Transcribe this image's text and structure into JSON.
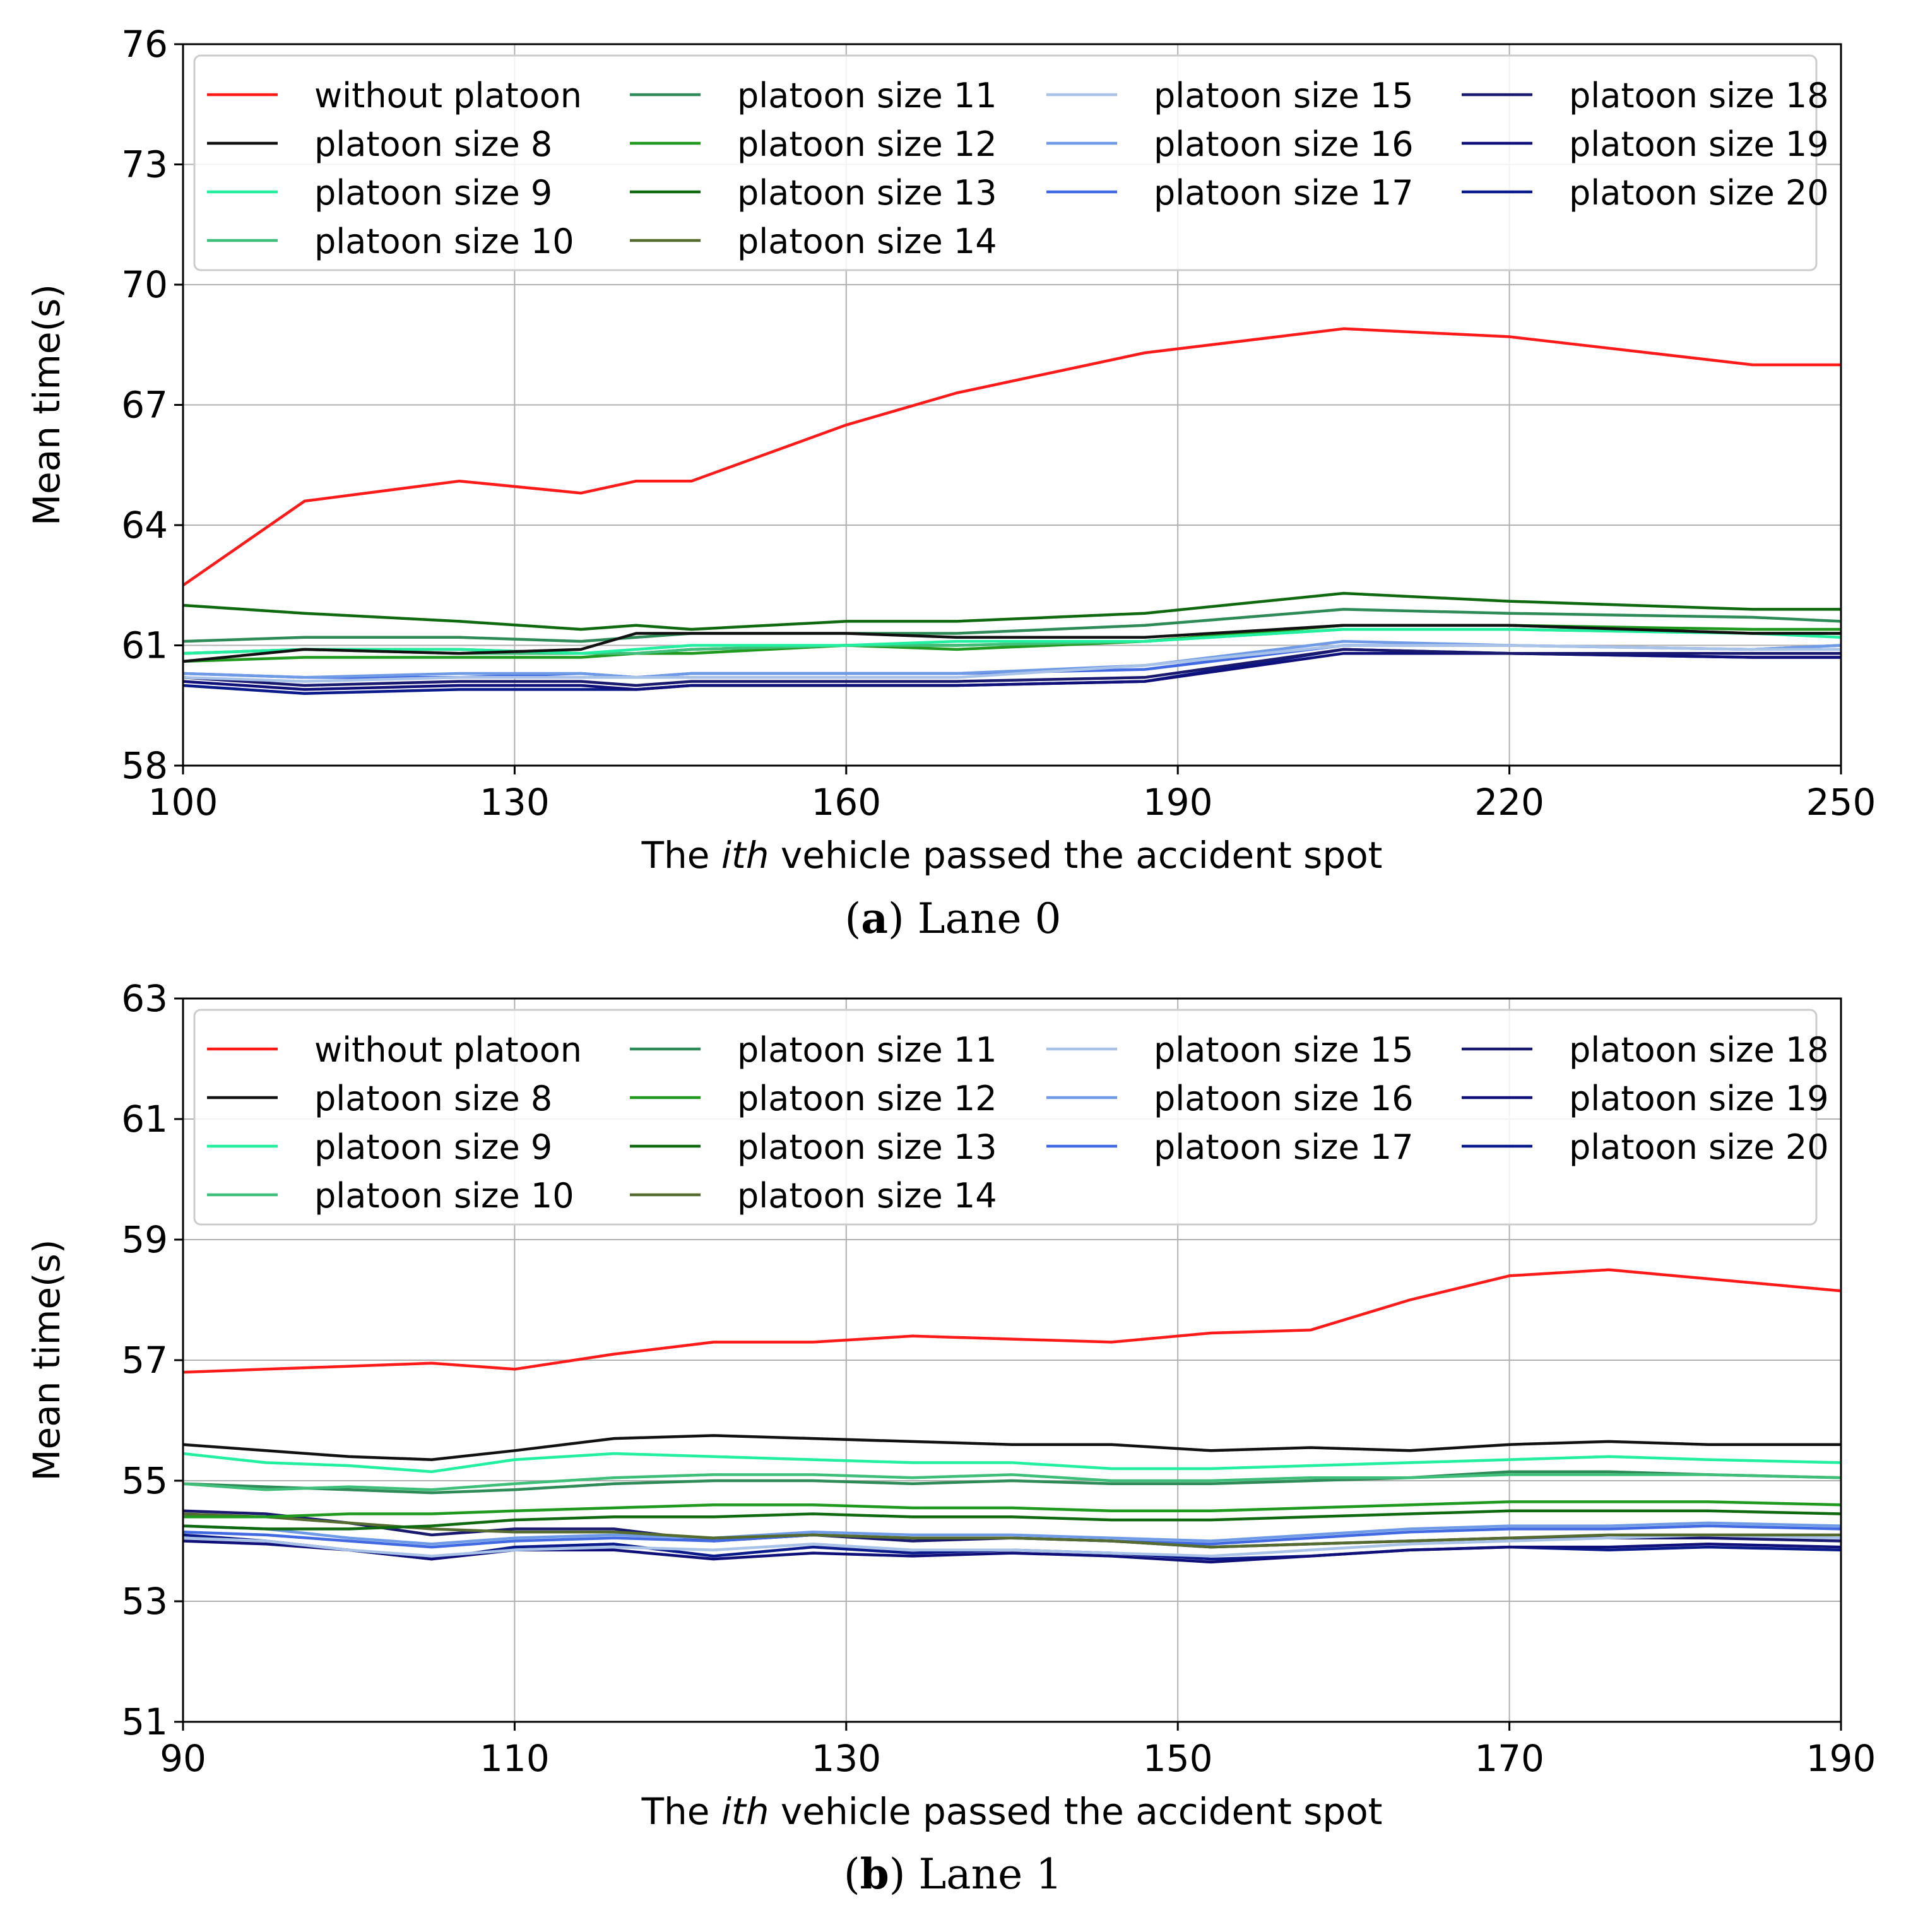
{
  "series_styles": [
    {
      "name": "without platoon",
      "color": "#ff1a1a"
    },
    {
      "name": "platoon size 8",
      "color": "#111111"
    },
    {
      "name": "platoon size 9",
      "color": "#22f0a0"
    },
    {
      "name": "platoon size 10",
      "color": "#3fbf7a"
    },
    {
      "name": "platoon size 11",
      "color": "#2e8b57"
    },
    {
      "name": "platoon size 12",
      "color": "#1f9a1f"
    },
    {
      "name": "platoon size 13",
      "color": "#0f6a0f"
    },
    {
      "name": "platoon size 14",
      "color": "#556b2f"
    },
    {
      "name": "platoon size 15",
      "color": "#a9c2e8"
    },
    {
      "name": "platoon size 16",
      "color": "#6f9be6"
    },
    {
      "name": "platoon size 17",
      "color": "#4169e1"
    },
    {
      "name": "platoon size 18",
      "color": "#191970"
    },
    {
      "name": "platoon size 19",
      "color": "#10107a"
    },
    {
      "name": "platoon size 20",
      "color": "#0a1a8a"
    }
  ],
  "chart_data": [
    {
      "type": "line",
      "panel_label": "a",
      "caption": "Lane 0",
      "title": "",
      "xlabel_before": "The ",
      "xlabel_italic": "ith",
      "xlabel_after": " vehicle passed the accident spot",
      "ylabel": "Mean time(s)",
      "xlim": [
        100,
        250
      ],
      "ylim": [
        58,
        76
      ],
      "xticks": [
        100,
        130,
        160,
        190,
        220,
        250
      ],
      "yticks": [
        58,
        61,
        64,
        67,
        70,
        73,
        76
      ],
      "grid": true,
      "legend": "top, 4 columns",
      "x": [
        100,
        111,
        125,
        136,
        141,
        146,
        160,
        170,
        187,
        205,
        220,
        242,
        250
      ],
      "series": [
        {
          "name": "without platoon",
          "values": [
            62.5,
            64.6,
            65.1,
            64.8,
            65.1,
            65.1,
            66.5,
            67.3,
            68.3,
            68.9,
            68.7,
            68.0,
            68.0
          ]
        },
        {
          "name": "platoon size 8",
          "values": [
            60.6,
            60.9,
            60.8,
            60.9,
            61.3,
            61.3,
            61.3,
            61.2,
            61.2,
            61.5,
            61.5,
            61.3,
            61.3
          ]
        },
        {
          "name": "platoon size 9",
          "values": [
            60.8,
            60.9,
            60.9,
            60.8,
            60.9,
            61.0,
            61.0,
            61.1,
            61.1,
            61.4,
            61.4,
            61.3,
            61.2
          ]
        },
        {
          "name": "platoon size 10",
          "values": [
            60.8,
            60.9,
            60.8,
            60.8,
            60.8,
            60.9,
            61.0,
            61.0,
            61.1,
            61.4,
            61.4,
            61.3,
            61.3
          ]
        },
        {
          "name": "platoon size 11",
          "values": [
            61.1,
            61.2,
            61.2,
            61.1,
            61.2,
            61.3,
            61.3,
            61.3,
            61.5,
            61.9,
            61.8,
            61.7,
            61.6
          ]
        },
        {
          "name": "platoon size 12",
          "values": [
            60.6,
            60.7,
            60.7,
            60.7,
            60.8,
            60.8,
            61.0,
            60.9,
            61.1,
            61.5,
            61.5,
            61.4,
            61.4
          ]
        },
        {
          "name": "platoon size 13",
          "values": [
            62.0,
            61.8,
            61.6,
            61.4,
            61.5,
            61.4,
            61.6,
            61.6,
            61.8,
            62.3,
            62.1,
            61.9,
            61.9
          ]
        },
        {
          "name": "platoon size 14",
          "values": [
            60.8,
            60.9,
            60.9,
            60.8,
            60.8,
            60.9,
            61.0,
            61.0,
            61.1,
            61.5,
            61.5,
            61.3,
            61.3
          ]
        },
        {
          "name": "platoon size 15",
          "values": [
            60.2,
            60.1,
            60.2,
            60.2,
            60.2,
            60.2,
            60.2,
            60.2,
            60.5,
            61.0,
            61.0,
            60.9,
            60.9
          ]
        },
        {
          "name": "platoon size 16",
          "values": [
            60.3,
            60.2,
            60.3,
            60.3,
            60.2,
            60.3,
            60.3,
            60.3,
            60.5,
            61.1,
            61.0,
            60.9,
            61.0
          ]
        },
        {
          "name": "platoon size 17",
          "values": [
            60.3,
            60.2,
            60.2,
            60.3,
            60.2,
            60.3,
            60.3,
            60.3,
            60.4,
            61.0,
            61.0,
            60.9,
            61.0
          ]
        },
        {
          "name": "platoon size 18",
          "values": [
            60.2,
            60.0,
            60.1,
            60.1,
            60.0,
            60.1,
            60.1,
            60.1,
            60.2,
            60.9,
            60.8,
            60.8,
            60.8
          ]
        },
        {
          "name": "platoon size 19",
          "values": [
            60.1,
            59.9,
            60.0,
            60.0,
            59.9,
            60.0,
            60.0,
            60.0,
            60.1,
            60.8,
            60.8,
            60.7,
            60.7
          ]
        },
        {
          "name": "platoon size 20",
          "values": [
            60.0,
            59.8,
            59.9,
            59.9,
            59.9,
            60.0,
            60.0,
            60.0,
            60.1,
            60.9,
            60.8,
            60.7,
            60.7
          ]
        }
      ]
    },
    {
      "type": "line",
      "panel_label": "b",
      "caption": "Lane 1",
      "title": "",
      "xlabel_before": "The ",
      "xlabel_italic": "ith",
      "xlabel_after": " vehicle passed the accident spot",
      "ylabel": "Mean time(s)",
      "xlim": [
        90,
        190
      ],
      "ylim": [
        51,
        63
      ],
      "xticks": [
        90,
        110,
        130,
        150,
        170,
        190
      ],
      "yticks": [
        51,
        53,
        55,
        57,
        59,
        61,
        63
      ],
      "grid": true,
      "legend": "top, 4 columns",
      "x": [
        90,
        95,
        100,
        105,
        110,
        116,
        122,
        128,
        134,
        140,
        146,
        152,
        158,
        164,
        170,
        176,
        182,
        190
      ],
      "series": [
        {
          "name": "without platoon",
          "values": [
            56.8,
            56.85,
            56.9,
            56.95,
            56.85,
            57.1,
            57.3,
            57.3,
            57.4,
            57.35,
            57.3,
            57.45,
            57.5,
            58.0,
            58.4,
            58.5,
            58.35,
            58.15
          ]
        },
        {
          "name": "platoon size 8",
          "values": [
            55.6,
            55.5,
            55.4,
            55.35,
            55.5,
            55.7,
            55.75,
            55.7,
            55.65,
            55.6,
            55.6,
            55.5,
            55.55,
            55.5,
            55.6,
            55.65,
            55.6,
            55.6
          ]
        },
        {
          "name": "platoon size 9",
          "values": [
            55.45,
            55.3,
            55.25,
            55.15,
            55.35,
            55.45,
            55.4,
            55.35,
            55.3,
            55.3,
            55.2,
            55.2,
            55.25,
            55.3,
            55.35,
            55.4,
            55.35,
            55.3
          ]
        },
        {
          "name": "platoon size 10",
          "values": [
            54.95,
            54.85,
            54.9,
            54.85,
            54.95,
            55.05,
            55.1,
            55.1,
            55.05,
            55.1,
            55.0,
            55.0,
            55.05,
            55.05,
            55.1,
            55.1,
            55.1,
            55.05
          ]
        },
        {
          "name": "platoon size 11",
          "values": [
            54.95,
            54.9,
            54.85,
            54.8,
            54.85,
            54.95,
            55.0,
            55.0,
            54.95,
            55.0,
            54.95,
            54.95,
            55.0,
            55.05,
            55.15,
            55.15,
            55.1,
            55.05
          ]
        },
        {
          "name": "platoon size 12",
          "values": [
            54.4,
            54.4,
            54.45,
            54.45,
            54.5,
            54.55,
            54.6,
            54.6,
            54.55,
            54.55,
            54.5,
            54.5,
            54.55,
            54.6,
            54.65,
            54.65,
            54.65,
            54.6
          ]
        },
        {
          "name": "platoon size 13",
          "values": [
            54.25,
            54.2,
            54.2,
            54.25,
            54.35,
            54.4,
            54.4,
            54.45,
            54.4,
            54.4,
            54.35,
            54.35,
            54.4,
            54.45,
            54.5,
            54.5,
            54.5,
            54.45
          ]
        },
        {
          "name": "platoon size 14",
          "values": [
            54.45,
            54.4,
            54.3,
            54.2,
            54.15,
            54.15,
            54.05,
            54.1,
            54.05,
            54.05,
            54.0,
            53.9,
            53.95,
            54.0,
            54.05,
            54.1,
            54.1,
            54.1
          ]
        },
        {
          "name": "platoon size 15",
          "values": [
            54.05,
            54.0,
            53.85,
            53.75,
            53.85,
            53.9,
            53.85,
            53.95,
            53.85,
            53.85,
            53.8,
            53.75,
            53.85,
            53.95,
            54.0,
            54.05,
            54.1,
            54.05
          ]
        },
        {
          "name": "platoon size 16",
          "values": [
            54.25,
            54.2,
            54.05,
            53.95,
            54.05,
            54.1,
            54.05,
            54.15,
            54.1,
            54.1,
            54.05,
            54.0,
            54.1,
            54.2,
            54.25,
            54.25,
            54.3,
            54.25
          ]
        },
        {
          "name": "platoon size 17",
          "values": [
            54.15,
            54.1,
            54.0,
            53.9,
            54.0,
            54.05,
            54.0,
            54.1,
            54.05,
            54.05,
            54.0,
            53.95,
            54.05,
            54.15,
            54.2,
            54.2,
            54.25,
            54.2
          ]
        },
        {
          "name": "platoon size 18",
          "values": [
            54.5,
            54.45,
            54.3,
            54.1,
            54.2,
            54.2,
            54.0,
            54.1,
            54.0,
            54.05,
            54.0,
            53.9,
            53.95,
            54.0,
            54.05,
            54.05,
            54.05,
            54.0
          ]
        },
        {
          "name": "platoon size 19",
          "values": [
            54.0,
            53.95,
            53.85,
            53.7,
            53.85,
            53.85,
            53.7,
            53.8,
            53.75,
            53.8,
            53.75,
            53.65,
            53.75,
            53.85,
            53.9,
            53.9,
            53.95,
            53.9
          ]
        },
        {
          "name": "platoon size 20",
          "values": [
            54.1,
            54.0,
            53.85,
            53.7,
            53.9,
            53.95,
            53.75,
            53.9,
            53.8,
            53.85,
            53.8,
            53.7,
            53.75,
            53.85,
            53.9,
            53.85,
            53.9,
            53.85
          ]
        }
      ]
    }
  ]
}
